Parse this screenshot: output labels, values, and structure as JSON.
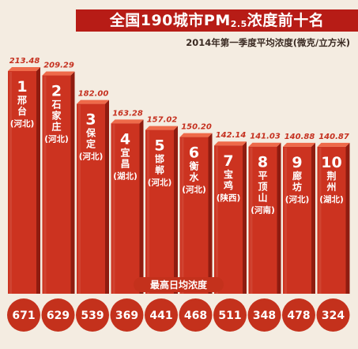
{
  "title_prefix": "全国190城市PM",
  "title_sub": "2.5",
  "title_suffix": "浓度前十名",
  "subtitle": "2014年第一季度平均浓度(微克/立方米)",
  "peak_label": "最高日均浓度",
  "colors": {
    "bar_front": "#cc3320",
    "bar_top": "#ee6a4a",
    "bar_side": "#8f1c10",
    "title_band": "#b71c16",
    "circle": "#c4311c",
    "peak_pill": "#c4311c",
    "value_text": "#c53120",
    "background": "#f4ece1"
  },
  "chart_data": {
    "type": "bar",
    "title": "全国190城市PM2.5浓度前十名",
    "subtitle": "2014年第一季度平均浓度(微克/立方米)",
    "categories": [
      "邢台",
      "石家庄",
      "保定",
      "宜昌",
      "邯郸",
      "衡水",
      "宝鸡",
      "平顶山",
      "廊坊",
      "荆州"
    ],
    "provinces": [
      "(河北)",
      "(河北)",
      "(河北)",
      "(湖北)",
      "(河北)",
      "(河北)",
      "(陕西)",
      "(河南)",
      "(河北)",
      "(湖北)"
    ],
    "ranks": [
      "1",
      "2",
      "3",
      "4",
      "5",
      "6",
      "7",
      "8",
      "9",
      "10"
    ],
    "values": [
      213.48,
      209.29,
      182.0,
      163.28,
      157.02,
      150.2,
      142.14,
      141.03,
      140.88,
      140.87
    ],
    "value_labels": [
      "213.48",
      "209.29",
      "182.00",
      "163.28",
      "157.02",
      "150.20",
      "142.14",
      "141.03",
      "140.88",
      "140.87"
    ],
    "peak_values": [
      671,
      629,
      539,
      369,
      441,
      468,
      511,
      348,
      478,
      324
    ],
    "peak_title": "最高日均浓度",
    "ylim": [
      0,
      213.48
    ]
  }
}
